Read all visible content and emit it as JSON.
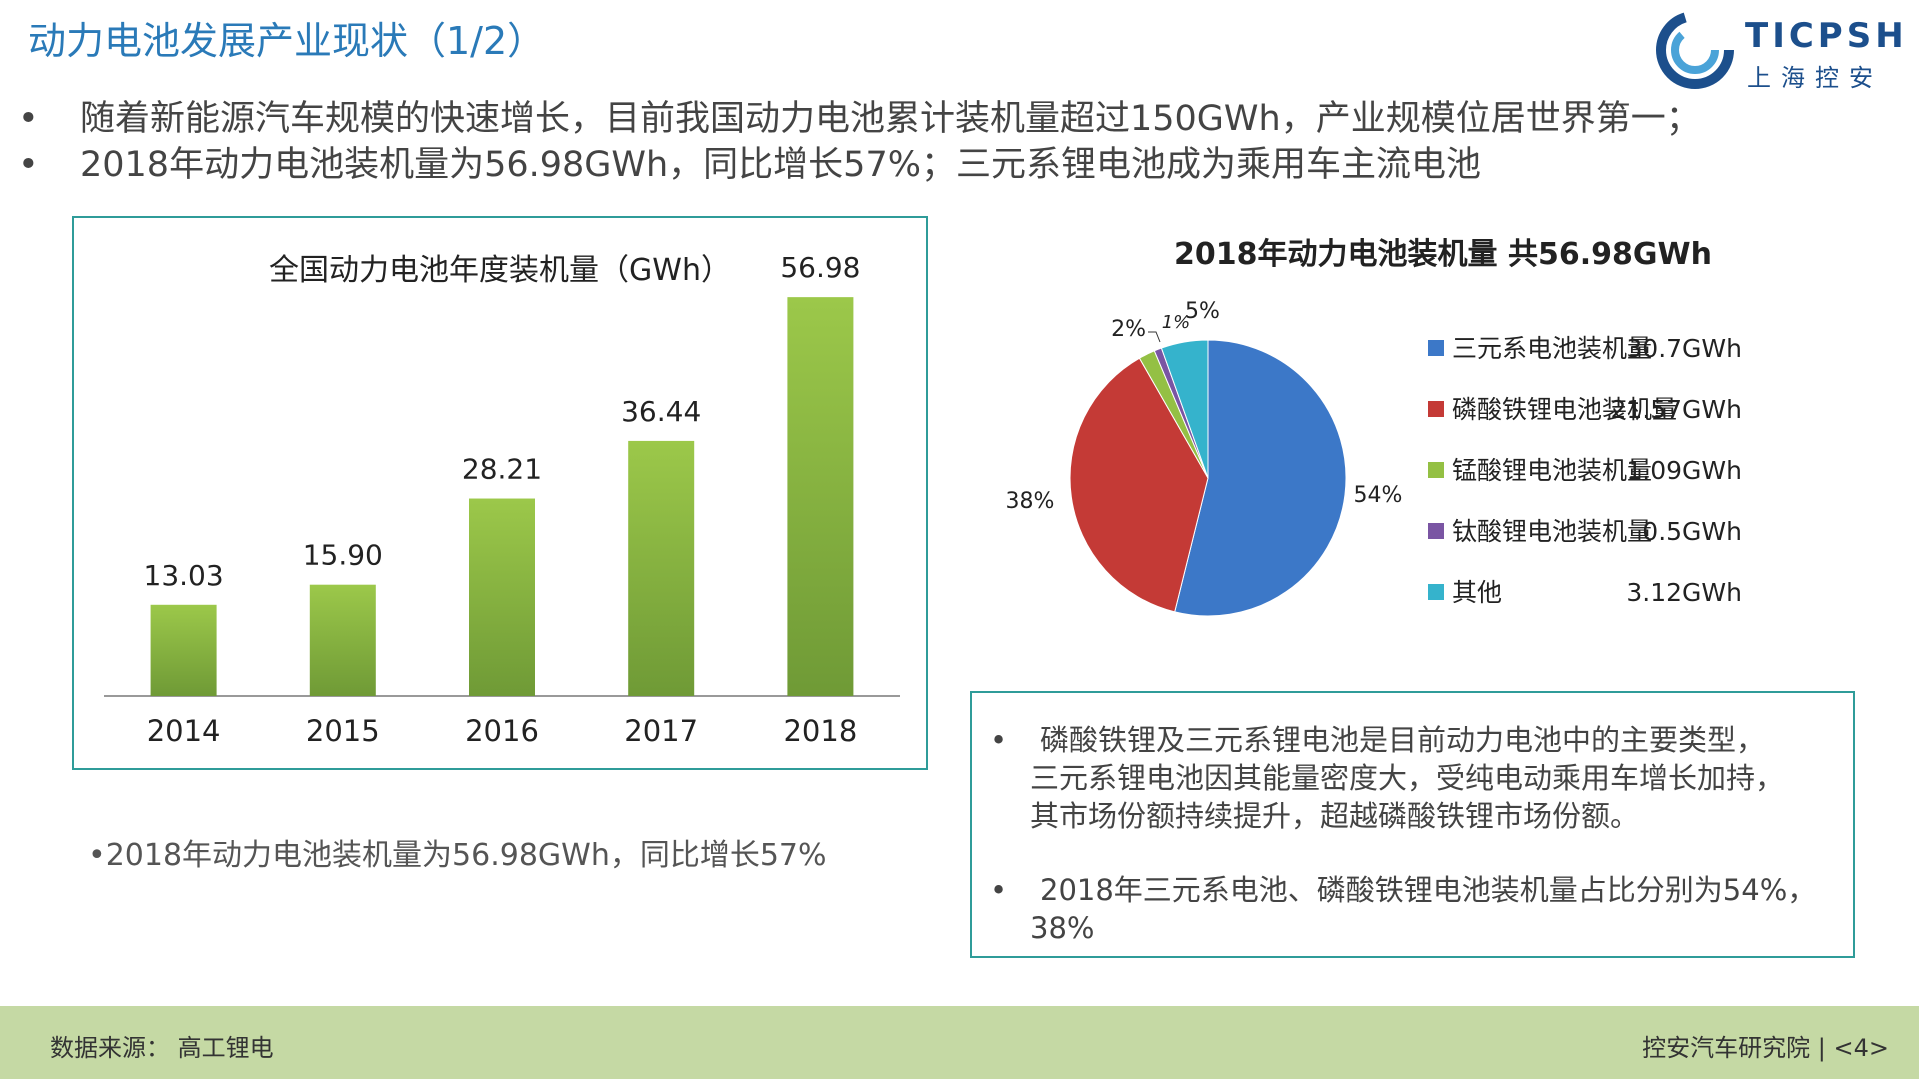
{
  "page": {
    "title": "动力电池发展产业现状（1/2）",
    "logo": {
      "text_top": "TICPSH",
      "text_bottom": "上海控安"
    },
    "bullets": [
      "随着新能源汽车规模的快速增长，目前我国动力电池累计装机量超过150GWh，产业规模位居世界第一；",
      "2018年动力电池装机量为56.98GWh，同比增长57%；三元系锂电池成为乘用车主流电池"
    ],
    "bullet_symbol": "•",
    "left_note": "•2018年动力电池装机量为56.98GWh，同比增长57%",
    "right_panel": [
      "磷酸铁锂及三元系锂电池是目前动力电池中的主要类型，",
      "三元系锂电池因其能量密度大，受纯电动乘用车增长加持，",
      "其市场份额持续提升，超越磷酸铁锂市场份额。",
      "2018年三元系电池、磷酸铁锂电池装机量占比分别为54%，",
      "38%"
    ],
    "footer": {
      "source": "数据来源： 高工锂电",
      "org": "控安汽车研究院 | <4>"
    },
    "colors": {
      "title": "#2a7ab8",
      "border": "#2f9c99",
      "footer_bg": "#c5d9a4"
    }
  },
  "chart_data": [
    {
      "type": "bar",
      "title": "全国动力电池年度装机量（GWh）",
      "categories": [
        "2014",
        "2015",
        "2016",
        "2017",
        "2018"
      ],
      "values": [
        13.03,
        15.9,
        28.21,
        36.44,
        56.98
      ],
      "value_labels": [
        "13.03",
        "15.90",
        "28.21",
        "36.44",
        "56.98"
      ],
      "ylim": [
        0,
        60
      ],
      "grid": false,
      "bar_color": "#8db843"
    },
    {
      "type": "pie",
      "title": "2018年动力电池装机量 共56.98GWh",
      "legend_position": "right",
      "slices": [
        {
          "label": "三元系电池装机量",
          "value": 30.7,
          "value_text": "30.7GWh",
          "pct": "54%",
          "color": "#3c78c8"
        },
        {
          "label": "磷酸铁锂电池装机量",
          "value": 21.57,
          "value_text": "21.57GWh",
          "pct": "38%",
          "color": "#c43a36"
        },
        {
          "label": "锰酸锂电池装机量",
          "value": 1.09,
          "value_text": "1.09GWh",
          "pct": "2%",
          "color": "#94c044"
        },
        {
          "label": "钛酸锂电池装机量",
          "value": 0.5,
          "value_text": "0.5GWh",
          "pct": "1%",
          "color": "#7a55a3"
        },
        {
          "label": "其他",
          "value": 3.12,
          "value_text": "3.12GWh",
          "pct": "5%",
          "color": "#35b3cc"
        }
      ]
    }
  ]
}
